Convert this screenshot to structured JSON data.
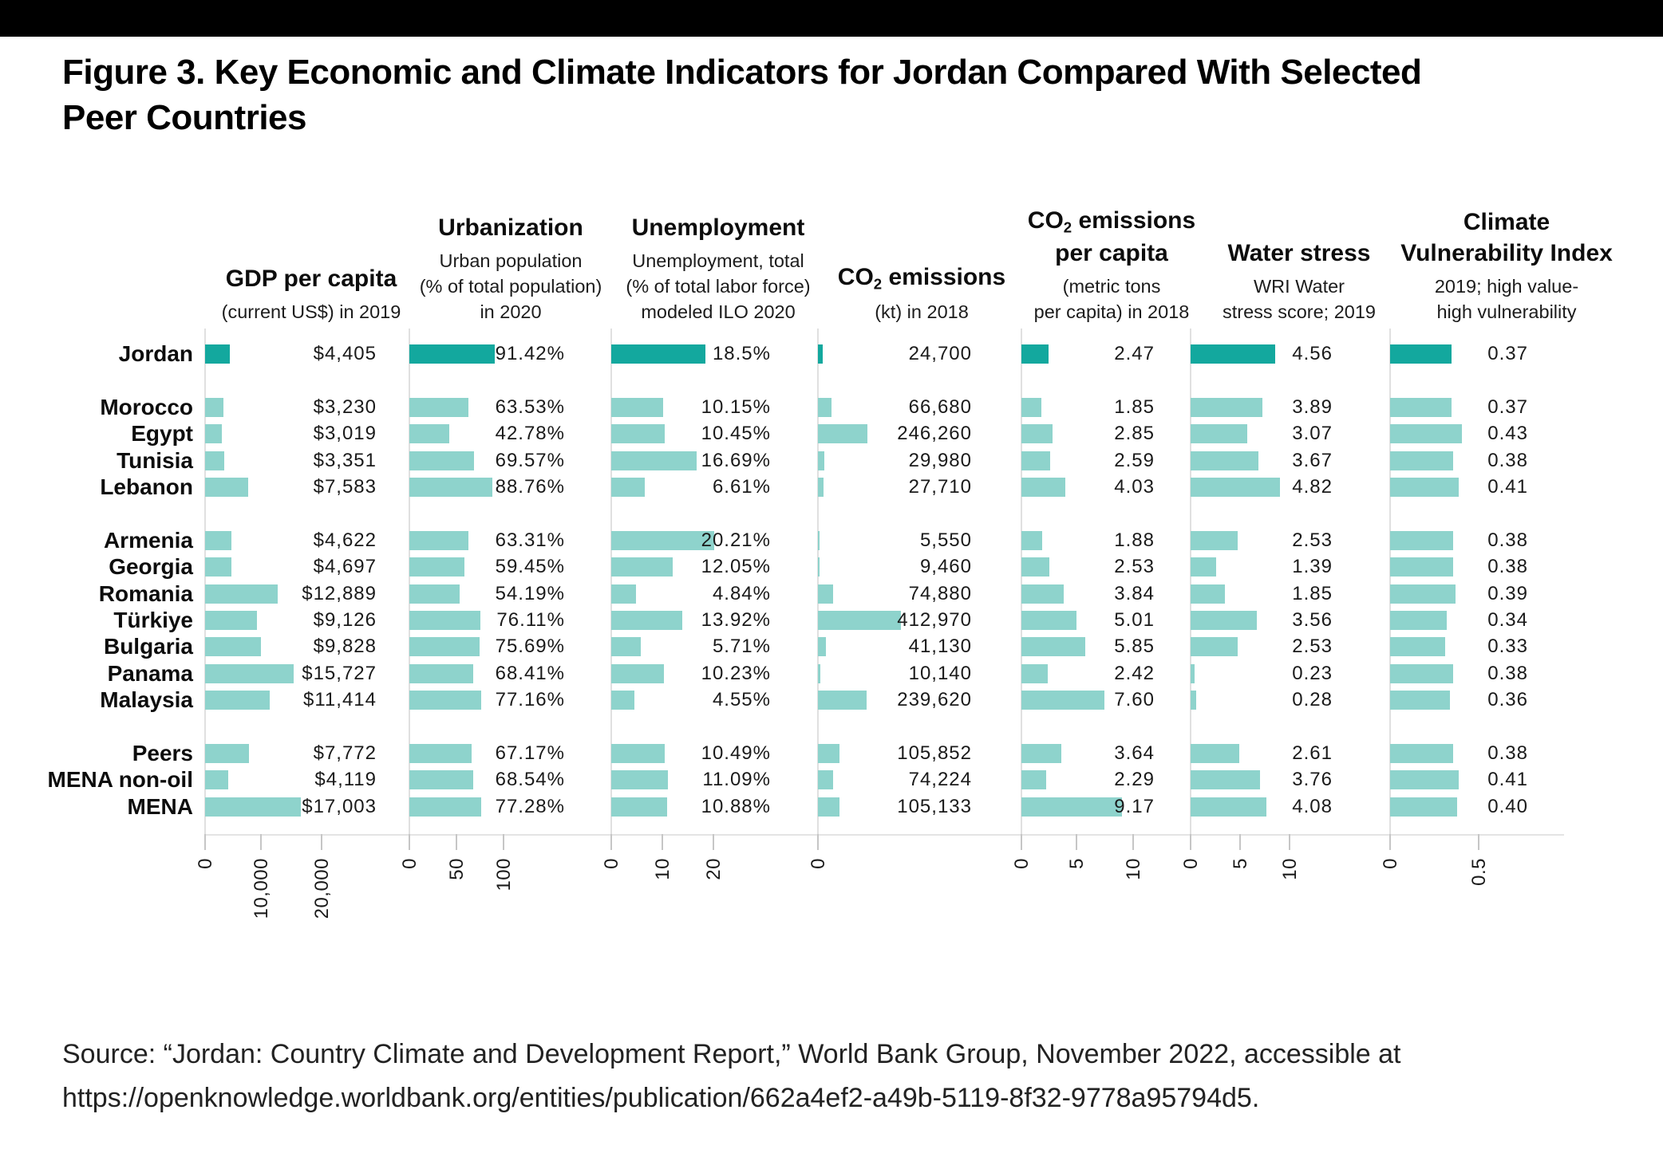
{
  "page": {
    "title_line1": "Figure 3. Key Economic and Climate Indicators for Jordan Compared With Selected",
    "title_line2": "Peer Countries",
    "source_line1": "Source: “Jordan: Country Climate and Development Report,” World Bank Group, November 2022, accessible at",
    "source_line2": "https://openknowledge.worldbank.org/entities/publication/662a4ef2-a49b-5119-8f32-9778a95794d5.",
    "colors": {
      "highlight_bar": "#13a89e",
      "bar": "#8ed3cc",
      "axis_line": "#e0e0e0",
      "baseline": "#e4e4e4",
      "tick": "#c6c6c6",
      "top_bar": "#000000"
    }
  },
  "chart_data": {
    "type": "bar",
    "orientation": "horizontal",
    "title": "Figure 3. Key Economic and Climate Indicators for Jordan Compared With Selected Peer Countries",
    "highlight_row": "Jordan",
    "grid": false,
    "legend": "none",
    "rows": [
      {
        "label": "Jordan",
        "group": 0
      },
      {
        "label": "Morocco",
        "group": 1
      },
      {
        "label": "Egypt",
        "group": 1
      },
      {
        "label": "Tunisia",
        "group": 1
      },
      {
        "label": "Lebanon",
        "group": 1
      },
      {
        "label": "Armenia",
        "group": 2
      },
      {
        "label": "Georgia",
        "group": 2
      },
      {
        "label": "Romania",
        "group": 2
      },
      {
        "label": "Türkiye",
        "group": 2
      },
      {
        "label": "Bulgaria",
        "group": 2
      },
      {
        "label": "Panama",
        "group": 2
      },
      {
        "label": "Malaysia",
        "group": 2
      },
      {
        "label": "Peers",
        "group": 3
      },
      {
        "label": "MENA non-oil",
        "group": 3
      },
      {
        "label": "MENA",
        "group": 3
      }
    ],
    "panels": [
      {
        "id": "gdp",
        "title_lines": [
          "GDP per capita"
        ],
        "subtitle_lines": [
          "(current US$) in 2019"
        ],
        "axis_ticks": [
          "0",
          "10,000",
          "20,000"
        ],
        "values": [
          4405,
          3230,
          3019,
          3351,
          7583,
          4622,
          4697,
          12889,
          9126,
          9828,
          15727,
          11414,
          7772,
          4119,
          17003
        ],
        "value_labels": [
          "$4,405",
          "$3,230",
          "$3,019",
          "$3,351",
          "$7,583",
          "$4,622",
          "$4,697",
          "$12,889",
          "$9,126",
          "$9,828",
          "$15,727",
          "$11,414",
          "$7,772",
          "$4,119",
          "$17,003"
        ]
      },
      {
        "id": "urbanization",
        "title_lines": [
          "Urbanization"
        ],
        "subtitle_lines": [
          "Urban population",
          "(% of total population)",
          "in 2020"
        ],
        "axis_ticks": [
          "0",
          "50",
          "100"
        ],
        "values": [
          91.42,
          63.53,
          42.78,
          69.57,
          88.76,
          63.31,
          59.45,
          54.19,
          76.11,
          75.69,
          68.41,
          77.16,
          67.17,
          68.54,
          77.28
        ],
        "value_labels": [
          "91.42%",
          "63.53%",
          "42.78%",
          "69.57%",
          "88.76%",
          "63.31%",
          "59.45%",
          "54.19%",
          "76.11%",
          "75.69%",
          "68.41%",
          "77.16%",
          "67.17%",
          "68.54%",
          "77.28%"
        ]
      },
      {
        "id": "unemployment",
        "title_lines": [
          "Unemployment"
        ],
        "subtitle_lines": [
          "Unemployment, total",
          "(% of total labor force)",
          "modeled ILO 2020"
        ],
        "axis_ticks": [
          "0",
          "10",
          "20"
        ],
        "values": [
          18.5,
          10.15,
          10.45,
          16.69,
          6.61,
          20.21,
          12.05,
          4.84,
          13.92,
          5.71,
          10.23,
          4.55,
          10.49,
          11.09,
          10.88
        ],
        "value_labels": [
          "18.5%",
          "10.15%",
          "10.45%",
          "16.69%",
          "6.61%",
          "20.21%",
          "12.05%",
          "4.84%",
          "13.92%",
          "5.71%",
          "10.23%",
          "4.55%",
          "10.49%",
          "11.09%",
          "10.88%"
        ]
      },
      {
        "id": "co2-emissions",
        "title_lines": [
          [
            "CO",
            {
              "sub": "2"
            },
            " emissions"
          ]
        ],
        "subtitle_lines": [
          "(kt) in 2018"
        ],
        "axis_ticks": [
          "0"
        ],
        "values": [
          24700,
          66680,
          246260,
          29980,
          27710,
          5550,
          9460,
          74880,
          412970,
          41130,
          10140,
          239620,
          105852,
          74224,
          105133
        ],
        "value_labels": [
          "24,700",
          "66,680",
          "246,260",
          "29,980",
          "27,710",
          "5,550",
          "9,460",
          "74,880",
          "412,970",
          "41,130",
          "10,140",
          "239,620",
          "105,852",
          "74,224",
          "105,133"
        ]
      },
      {
        "id": "co2-per-capita",
        "title_lines": [
          [
            "CO",
            {
              "sub": "2"
            },
            " emissions"
          ],
          "per capita"
        ],
        "subtitle_lines": [
          "(metric tons",
          "per capita) in 2018"
        ],
        "axis_ticks": [
          "0",
          "5",
          "10"
        ],
        "values": [
          2.47,
          1.85,
          2.85,
          2.59,
          4.03,
          1.88,
          2.53,
          3.84,
          5.01,
          5.85,
          2.42,
          7.6,
          3.64,
          2.29,
          9.17
        ],
        "value_labels": [
          "2.47",
          "1.85",
          "2.85",
          "2.59",
          "4.03",
          "1.88",
          "2.53",
          "3.84",
          "5.01",
          "5.85",
          "2.42",
          "7.60",
          "3.64",
          "2.29",
          "9.17"
        ]
      },
      {
        "id": "water-stress",
        "title_lines": [
          "Water stress"
        ],
        "subtitle_lines": [
          "WRI Water",
          "stress score; 2019"
        ],
        "axis_ticks": [
          "0",
          "5",
          "10"
        ],
        "values": [
          4.56,
          3.89,
          3.07,
          3.67,
          4.82,
          2.53,
          1.39,
          1.85,
          3.56,
          2.53,
          0.23,
          0.28,
          2.61,
          3.76,
          4.08
        ],
        "value_labels": [
          "4.56",
          "3.89",
          "3.07",
          "3.67",
          "4.82",
          "2.53",
          "1.39",
          "1.85",
          "3.56",
          "2.53",
          "0.23",
          "0.28",
          "2.61",
          "3.76",
          "4.08"
        ]
      },
      {
        "id": "climate-vulnerability",
        "title_lines": [
          "Climate",
          "Vulnerability Index"
        ],
        "subtitle_lines": [
          "2019; high value-",
          "high vulnerability"
        ],
        "axis_ticks": [
          "0",
          "0.5"
        ],
        "values": [
          0.37,
          0.37,
          0.43,
          0.38,
          0.41,
          0.38,
          0.38,
          0.39,
          0.34,
          0.33,
          0.38,
          0.36,
          0.38,
          0.41,
          0.4
        ],
        "value_labels": [
          "0.37",
          "0.37",
          "0.43",
          "0.38",
          "0.41",
          "0.38",
          "0.38",
          "0.39",
          "0.34",
          "0.33",
          "0.38",
          "0.36",
          "0.38",
          "0.41",
          "0.40"
        ]
      }
    ]
  }
}
